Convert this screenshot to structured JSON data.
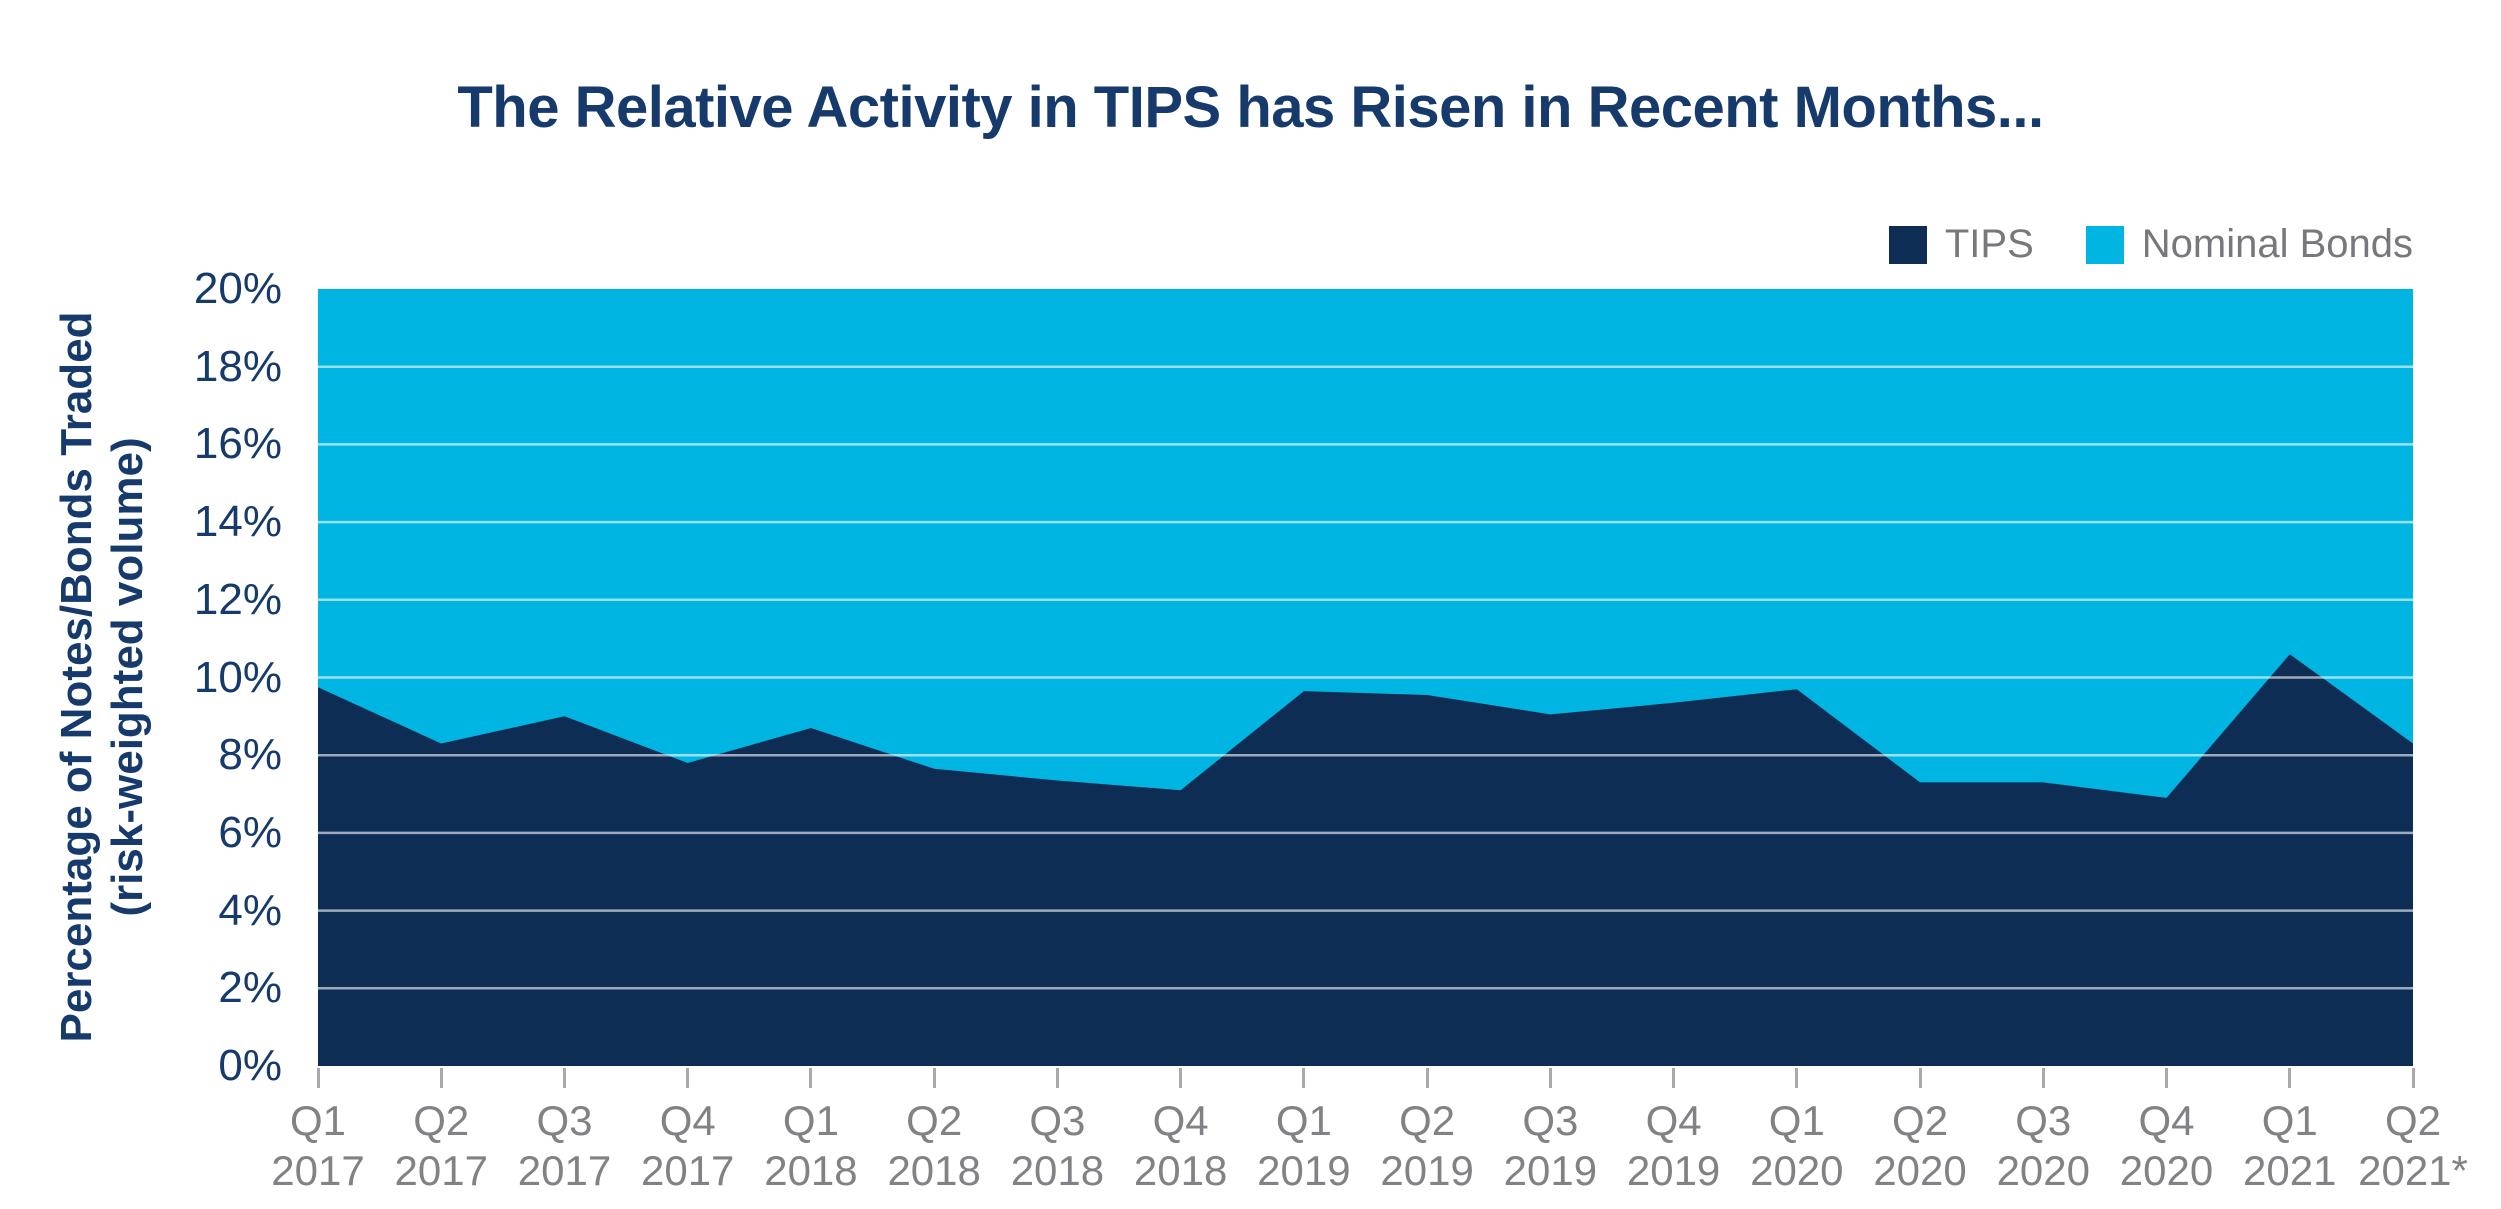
{
  "title": "The Relative Activity in TIPS has Risen in Recent Months...",
  "legend": [
    {
      "label": "TIPS",
      "color": "#0E2D55"
    },
    {
      "label": "Nominal Bonds",
      "color": "#00B5E2"
    }
  ],
  "chart_data": {
    "type": "area",
    "stacked": true,
    "title": "The Relative Activity in TIPS has Risen in Recent Months...",
    "categories": [
      "Q1 2017",
      "Q2 2017",
      "Q3 2017",
      "Q4 2017",
      "Q1 2018",
      "Q2 2018",
      "Q3 2018",
      "Q4 2018",
      "Q1 2019",
      "Q2 2019",
      "Q3 2019",
      "Q4 2019",
      "Q1 2020",
      "Q2 2020",
      "Q3 2020",
      "Q4 2020",
      "Q1 2021",
      "Q2 2021*"
    ],
    "series": [
      {
        "name": "TIPS",
        "color": "#0E2D55",
        "values": [
          9.75,
          8.3,
          9.0,
          7.8,
          8.7,
          7.65,
          7.35,
          7.1,
          9.65,
          9.55,
          9.05,
          9.35,
          9.7,
          7.3,
          7.3,
          6.9,
          10.6,
          8.3
        ]
      },
      {
        "name": "Nominal Bonds",
        "color": "#00B5E2",
        "fills_to_axis_max": true
      }
    ],
    "ylim": [
      0,
      20
    ],
    "y_ticks": [
      "0%",
      "2%",
      "4%",
      "6%",
      "8%",
      "10%",
      "12%",
      "14%",
      "16%",
      "18%",
      "20%"
    ],
    "ylabel_line1": "Percentage of Notes/Bonds Traded",
    "ylabel_line2": "(risk-weighted volume)",
    "xlabel": "",
    "grid": "horizontal white lines every 2%",
    "gridline_color": "rgba(255,255,255,0.6)",
    "legend_position": "top-right",
    "text_colors": {
      "axis_navy": "#153A6B",
      "axis_gray": "#808285"
    }
  }
}
